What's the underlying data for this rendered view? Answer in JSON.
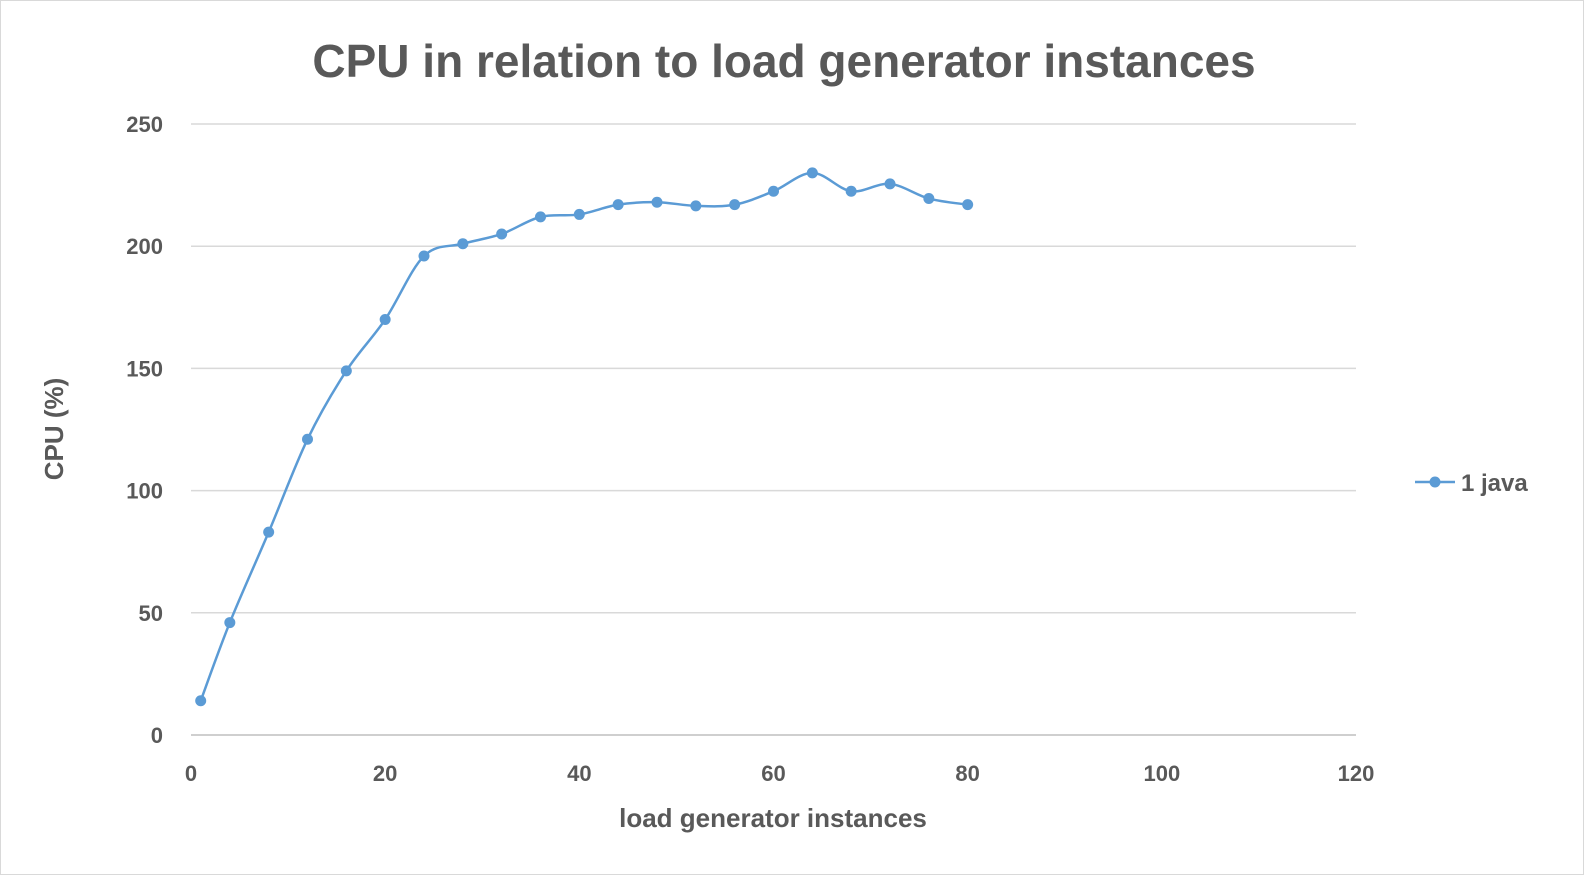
{
  "chart_data": {
    "type": "line",
    "title": "CPU in relation to load generator instances",
    "xlabel": "load generator instances",
    "ylabel": "CPU (%)",
    "xlim": [
      0,
      120
    ],
    "ylim": [
      0,
      250
    ],
    "x_ticks": [
      0,
      20,
      40,
      60,
      80,
      100,
      120
    ],
    "y_ticks": [
      0,
      50,
      100,
      150,
      200,
      250
    ],
    "grid": "horizontal",
    "legend_position": "right",
    "smooth": true,
    "series": [
      {
        "name": "1 java",
        "color": "#5b9bd5",
        "x": [
          1,
          4,
          8,
          12,
          16,
          20,
          24,
          28,
          32,
          36,
          40,
          44,
          48,
          52,
          56,
          60,
          64,
          68,
          72,
          76,
          80
        ],
        "y": [
          14,
          46,
          83,
          121,
          149,
          170,
          196,
          201,
          205,
          212,
          213,
          217,
          218,
          216.5,
          217,
          222.5,
          230,
          222.5,
          225.5,
          219.5,
          217
        ]
      }
    ]
  }
}
